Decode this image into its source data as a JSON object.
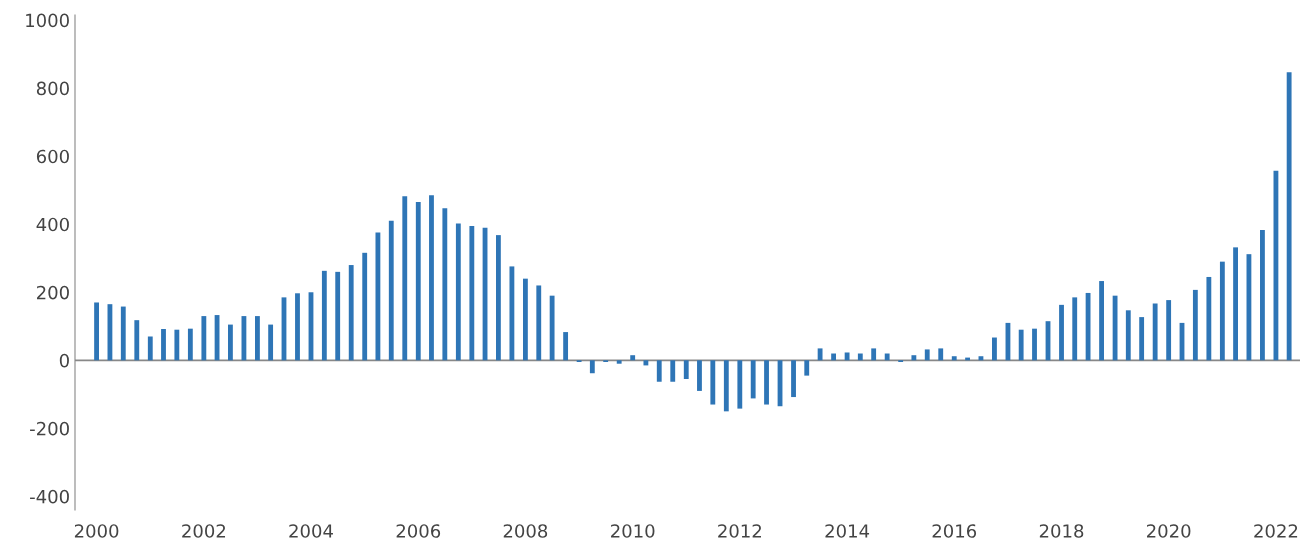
{
  "chart_data": {
    "type": "bar",
    "color": "#2e75b6",
    "x": [
      "2000-01",
      "2000-04",
      "2000-07",
      "2000-10",
      "2001-01",
      "2001-04",
      "2001-07",
      "2001-10",
      "2002-01",
      "2002-04",
      "2002-07",
      "2002-10",
      "2003-01",
      "2003-04",
      "2003-07",
      "2003-10",
      "2004-01",
      "2004-04",
      "2004-07",
      "2004-10",
      "2005-01",
      "2005-04",
      "2005-07",
      "2005-10",
      "2006-01",
      "2006-04",
      "2006-07",
      "2006-10",
      "2007-01",
      "2007-04",
      "2007-07",
      "2007-10",
      "2008-01",
      "2008-04",
      "2008-07",
      "2008-10",
      "2009-01",
      "2009-04",
      "2009-07",
      "2009-10",
      "2010-01",
      "2010-04",
      "2010-07",
      "2010-10",
      "2011-01",
      "2011-04",
      "2011-07",
      "2011-10",
      "2012-01",
      "2012-04",
      "2012-07",
      "2012-10",
      "2013-01",
      "2013-04",
      "2013-07",
      "2013-10",
      "2014-01",
      "2014-04",
      "2014-07",
      "2014-10",
      "2015-01",
      "2015-04",
      "2015-07",
      "2015-10",
      "2016-01",
      "2016-04",
      "2016-07",
      "2016-10",
      "2017-01",
      "2017-04",
      "2017-07",
      "2017-10",
      "2018-01",
      "2018-04",
      "2018-07",
      "2018-10",
      "2019-01",
      "2019-04",
      "2019-07",
      "2019-10",
      "2020-01",
      "2020-04",
      "2020-07",
      "2020-10",
      "2021-01",
      "2021-04",
      "2021-07",
      "2021-10",
      "2022-01",
      "2022-04"
    ],
    "values": [
      170,
      165,
      158,
      118,
      70,
      92,
      90,
      93,
      130,
      133,
      105,
      130,
      130,
      105,
      185,
      197,
      200,
      263,
      260,
      280,
      316,
      376,
      410,
      482,
      465,
      485,
      447,
      402,
      395,
      390,
      368,
      276,
      240,
      220,
      190,
      83,
      -5,
      -38,
      -5,
      -10,
      15,
      -15,
      -63,
      -63,
      -55,
      -90,
      -130,
      -150,
      -142,
      -112,
      -130,
      -135,
      -108,
      -45,
      35,
      20,
      23,
      20,
      35,
      20,
      -5,
      15,
      32,
      35,
      12,
      8,
      12,
      67,
      110,
      90,
      93,
      115,
      163,
      185,
      198,
      233,
      190,
      147,
      127,
      167,
      177,
      110,
      207,
      245,
      290,
      332,
      312,
      383,
      557,
      847
    ],
    "xlim": [
      "1999-08-07",
      "2022-06-14"
    ],
    "xticks": [
      "2000",
      "2002",
      "2004",
      "2006",
      "2008",
      "2010",
      "2012",
      "2014",
      "2016",
      "2018",
      "2020",
      "2022"
    ],
    "ref_lines": [
      {
        "axis": "y",
        "value": 0,
        "color": "#888888"
      }
    ],
    "ylim": [
      -440,
      1015
    ],
    "yticks": [
      -400,
      -200,
      0,
      200,
      400,
      600,
      800,
      1000
    ],
    "grid": false,
    "legend": false
  }
}
